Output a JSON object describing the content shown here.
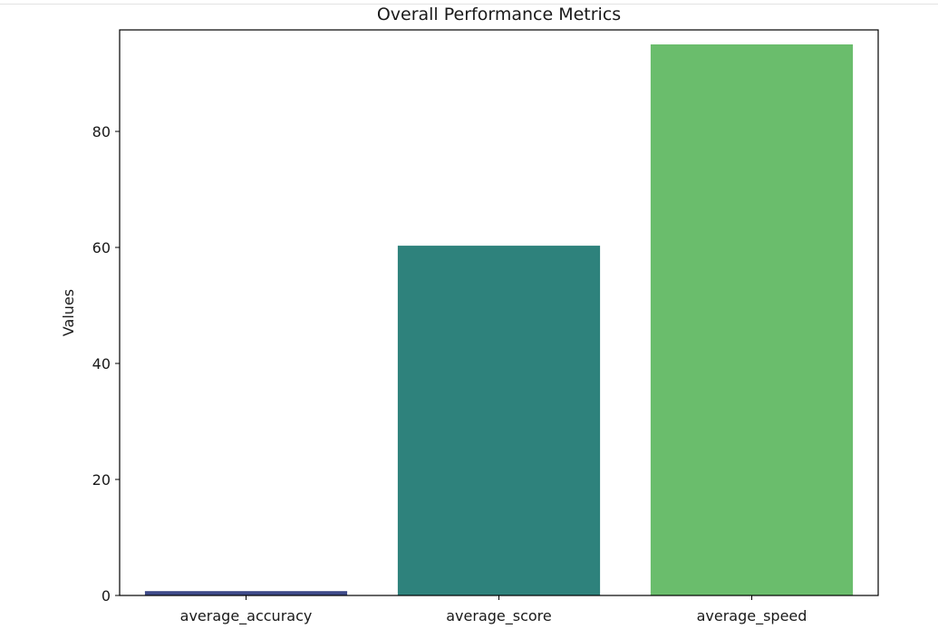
{
  "chart_data": {
    "type": "bar",
    "title": "Overall Performance Metrics",
    "xlabel": "",
    "ylabel": "Values",
    "categories": [
      "average_accuracy",
      "average_score",
      "average_speed"
    ],
    "values": [
      0.75,
      60.3,
      95.0
    ],
    "colors": [
      "#3e4a89",
      "#2e827c",
      "#6abd6c"
    ],
    "ylim": [
      0,
      97.5
    ],
    "yticks": [
      0,
      20,
      40,
      60,
      80
    ],
    "grid": false,
    "legend": "none"
  }
}
